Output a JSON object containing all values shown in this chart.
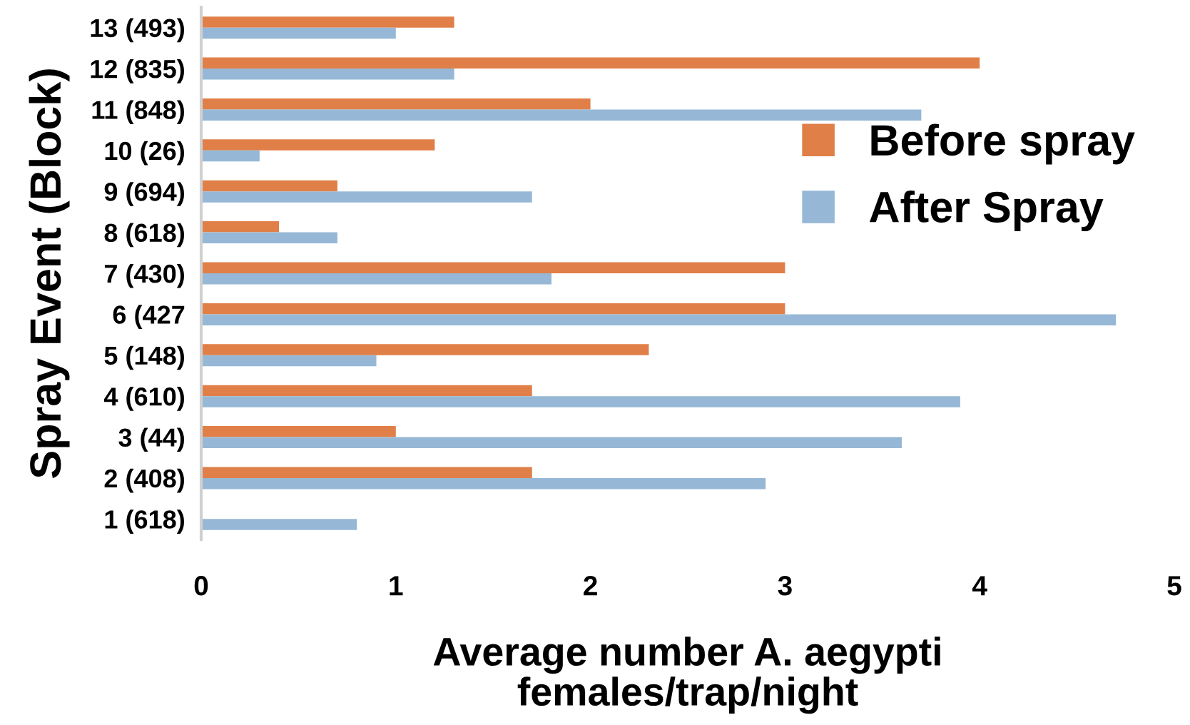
{
  "chart_data": {
    "type": "bar",
    "orientation": "horizontal",
    "xlabel": "Average number A. aegypti\nfemales/trap/night",
    "ylabel": "Spray Event (Block)",
    "categories": [
      "13 (493)",
      "12 (835)",
      "11 (848)",
      "10 (26)",
      "9 (694)",
      "8 (618)",
      "7 (430)",
      "6 (427",
      "5 (148)",
      "4 (610)",
      "3 (44)",
      "2 (408)",
      "1 (618)"
    ],
    "series": [
      {
        "name": "Before spray",
        "color": "#e07f47",
        "values": [
          1.3,
          4.0,
          2.0,
          1.2,
          0.7,
          0.4,
          3.0,
          3.0,
          2.3,
          1.7,
          1.0,
          1.7,
          null
        ]
      },
      {
        "name": "After Spray",
        "color": "#96b8d6",
        "values": [
          1.0,
          1.3,
          3.7,
          0.3,
          1.7,
          0.7,
          1.8,
          4.7,
          0.9,
          3.9,
          3.6,
          2.9,
          0.8
        ]
      }
    ],
    "xlim": [
      0,
      5
    ],
    "xticks": [
      0,
      1,
      2,
      3,
      4,
      5
    ],
    "grid": false,
    "legend": "right"
  }
}
